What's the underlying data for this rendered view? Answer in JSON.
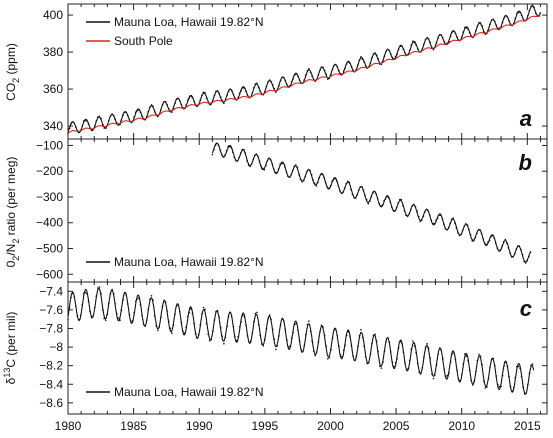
{
  "colors": {
    "mauna_loa": "#111111",
    "south_pole": "#d42a1e",
    "frame": "#222222"
  },
  "chart_data": [
    {
      "type": "line",
      "panel_label": "a",
      "ylabel_main": "CO",
      "ylabel_sub": "2",
      "ylabel_tail": " (ppm)",
      "xlim": [
        1980,
        2016.5
      ],
      "ylim": [
        333,
        406
      ],
      "yticks": [
        340,
        360,
        380,
        400
      ],
      "legend_position": "top-left",
      "series": [
        {
          "name": "Mauna Loa, Hawaii 19.82°N",
          "color": "#111111",
          "style": "line+points",
          "x": [
            1980,
            1982,
            1984,
            1986,
            1988,
            1990,
            1992,
            1994,
            1996,
            1998,
            2000,
            2002,
            2004,
            2006,
            2008,
            2010,
            2012,
            2014,
            2016
          ],
          "y": [
            338.7,
            341.1,
            344.0,
            346.9,
            351.3,
            354.2,
            356.3,
            358.8,
            362.5,
            366.6,
            369.4,
            372.9,
            377.4,
            381.8,
            385.4,
            389.7,
            393.6,
            397.9,
            403.3
          ],
          "seasonal_amplitude": 3.3
        },
        {
          "name": "South Pole",
          "color": "#d42a1e",
          "style": "line",
          "x": [
            1980,
            1982,
            1984,
            1986,
            1988,
            1990,
            1992,
            1994,
            1996,
            1998,
            2000,
            2002,
            2004,
            2006,
            2008,
            2010,
            2012,
            2014,
            2016
          ],
          "y": [
            336.5,
            339.2,
            341.8,
            344.6,
            348.9,
            352.0,
            354.0,
            356.2,
            359.9,
            364.0,
            367.0,
            370.3,
            374.7,
            379.0,
            383.0,
            387.1,
            391.2,
            395.4,
            400.3
          ],
          "seasonal_amplitude": 0.5
        }
      ]
    },
    {
      "type": "line",
      "panel_label": "b",
      "ylabel_parts": [
        "0",
        "2",
        "/N",
        "2",
        " ratio (per meg)"
      ],
      "xlim": [
        1980,
        2016.5
      ],
      "ylim": [
        -630,
        -75
      ],
      "yticks": [
        -100,
        -200,
        -300,
        -400,
        -500,
        -600
      ],
      "legend_position": "bottom-left",
      "series": [
        {
          "name": "Mauna Loa, Hawaii 19.82°N",
          "color": "#111111",
          "style": "line+points",
          "x": [
            1991,
            1992,
            1994,
            1996,
            1998,
            2000,
            2002,
            2004,
            2006,
            2008,
            2010,
            2012,
            2014,
            2015.3
          ],
          "y": [
            -115,
            -120,
            -155,
            -185,
            -215,
            -245,
            -280,
            -315,
            -350,
            -385,
            -425,
            -465,
            -510,
            -535
          ],
          "seasonal_amplitude": 26
        }
      ]
    },
    {
      "type": "line",
      "panel_label": "c",
      "ylabel_parts": [
        "δ",
        "13",
        "C (per mil)"
      ],
      "xlim": [
        1980,
        2016.5
      ],
      "xticks": [
        1980,
        1985,
        1990,
        1995,
        2000,
        2005,
        2010,
        2015
      ],
      "ylim": [
        -8.72,
        -7.3
      ],
      "yticks": [
        -7.4,
        -7.6,
        -7.8,
        -8.0,
        -8.2,
        -8.4,
        -8.6
      ],
      "legend_position": "bottom-left",
      "series": [
        {
          "name": "Mauna Loa, Hawaii 19.82°N",
          "color": "#111111",
          "style": "line+points",
          "x": [
            1980,
            1982,
            1984,
            1986,
            1988,
            1990,
            1992,
            1994,
            1996,
            1998,
            2000,
            2002,
            2004,
            2006,
            2008,
            2010,
            2012,
            2014,
            2015.5
          ],
          "y": [
            -7.58,
            -7.52,
            -7.56,
            -7.62,
            -7.68,
            -7.75,
            -7.78,
            -7.8,
            -7.84,
            -7.9,
            -7.95,
            -7.99,
            -8.05,
            -8.1,
            -8.16,
            -8.22,
            -8.27,
            -8.33,
            -8.36
          ],
          "seasonal_amplitude": 0.16
        }
      ]
    }
  ]
}
